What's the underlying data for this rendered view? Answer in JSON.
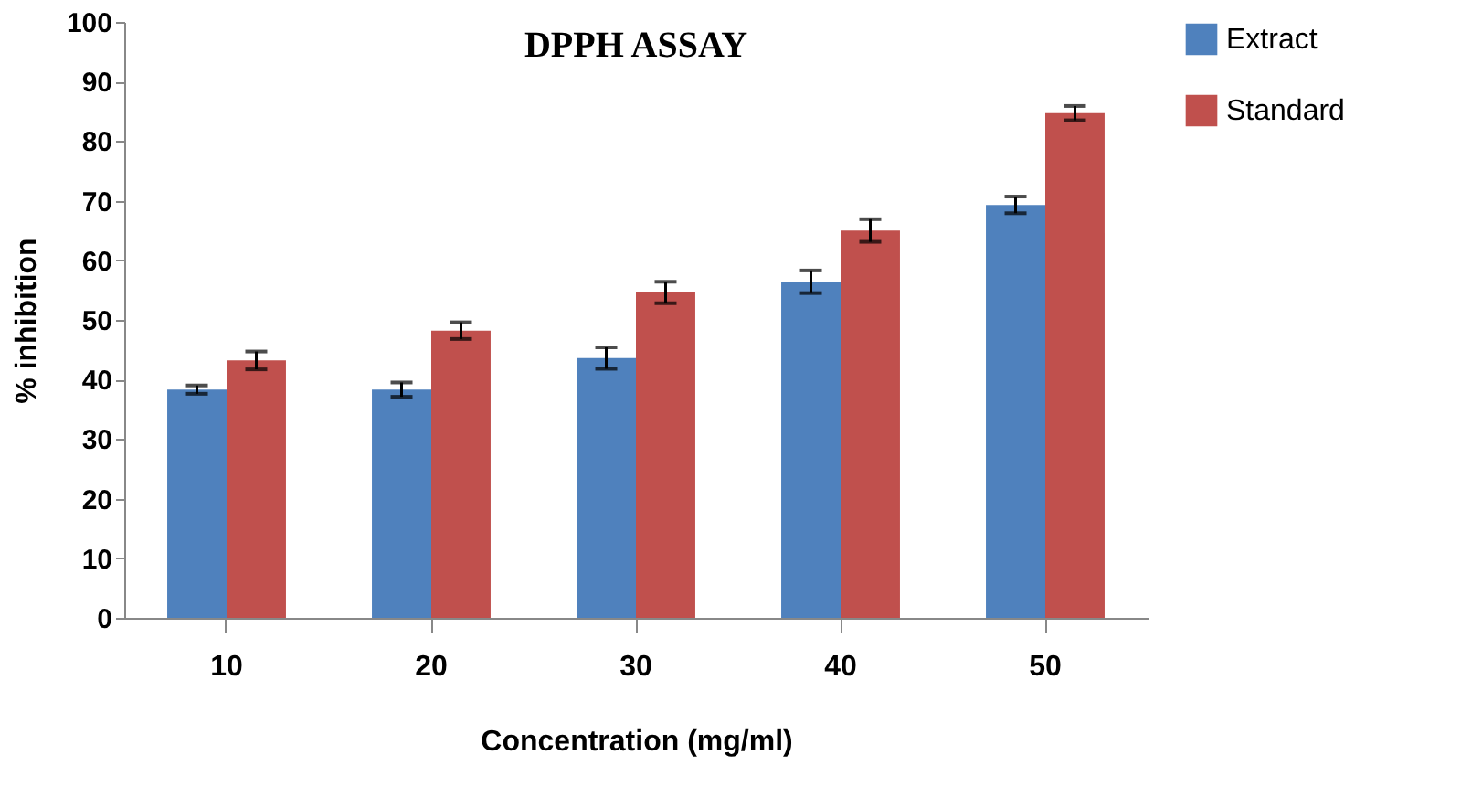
{
  "chart_data": {
    "type": "bar",
    "title": "DPPH ASSAY",
    "xlabel": "Concentration (mg/ml)",
    "ylabel": "% inhibition",
    "categories": [
      "10",
      "20",
      "30",
      "40",
      "50"
    ],
    "series": [
      {
        "name": "Extract",
        "color": "#4f81bd",
        "values": [
          38.3,
          38.3,
          43.6,
          56.4,
          69.3
        ],
        "errors": [
          0.7,
          1.2,
          1.8,
          1.9,
          1.4
        ]
      },
      {
        "name": "Standard",
        "color": "#c0504d",
        "values": [
          43.2,
          48.2,
          54.6,
          65.0,
          84.7
        ],
        "errors": [
          1.5,
          1.4,
          1.8,
          1.9,
          1.2
        ]
      }
    ],
    "ylim": [
      0,
      100
    ],
    "yticks": [
      0,
      10,
      20,
      30,
      40,
      50,
      60,
      70,
      80,
      90,
      100
    ],
    "grid": false,
    "legend": "right"
  }
}
